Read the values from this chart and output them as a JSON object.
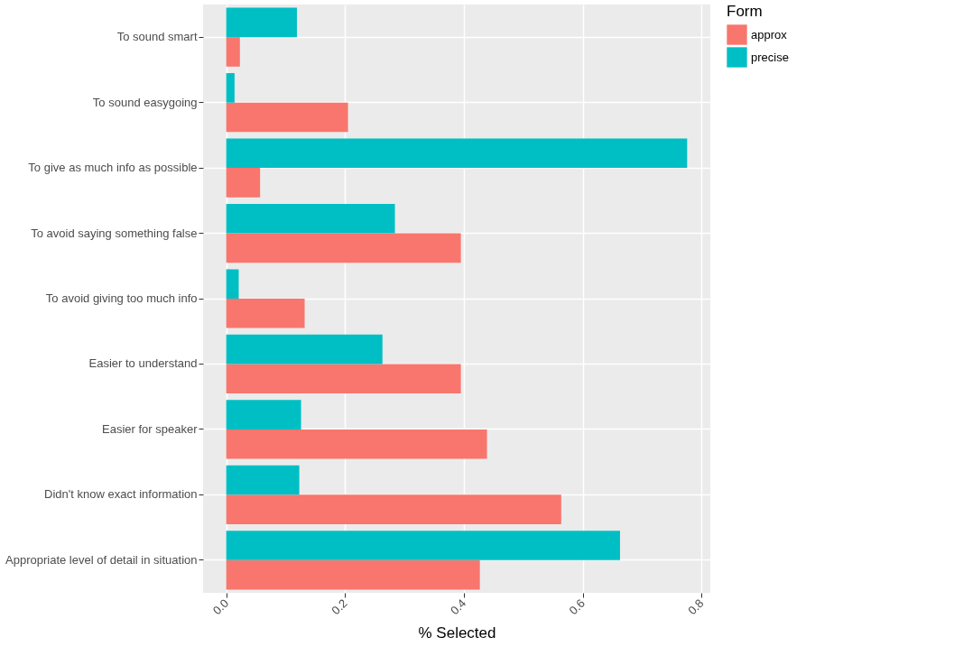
{
  "chart_data": {
    "type": "bar",
    "orientation": "horizontal",
    "xlabel": "% Selected",
    "legend_title": "Form",
    "legend": "right",
    "grid": true,
    "categories": [
      "To sound smart",
      "To sound easygoing",
      "To give as much info as possible",
      "To avoid saying something false",
      "To avoid giving too much info",
      "Easier to understand",
      "Easier for speaker",
      "Didn't know exact information",
      "Appropriate level of detail in situation"
    ],
    "series": [
      {
        "name": "approx",
        "color": "#f8766d",
        "values": [
          0.023,
          0.205,
          0.057,
          0.395,
          0.132,
          0.395,
          0.439,
          0.564,
          0.427
        ]
      },
      {
        "name": "precise",
        "color": "#00bfc4",
        "values": [
          0.119,
          0.014,
          0.776,
          0.284,
          0.021,
          0.263,
          0.126,
          0.123,
          0.663
        ]
      }
    ],
    "xlim": [
      -0.039,
      0.815
    ],
    "xticks": [
      {
        "value": 0,
        "label": "0.0"
      },
      0.2,
      0.4,
      0.6,
      0.8
    ]
  }
}
